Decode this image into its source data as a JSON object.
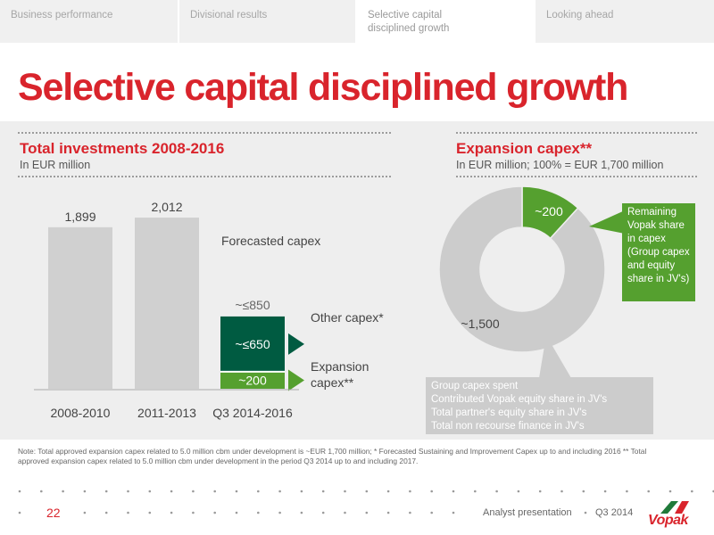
{
  "tabs": [
    {
      "label": "Business performance"
    },
    {
      "label": "Divisional results"
    },
    {
      "label": "Selective capital disciplined growth"
    },
    {
      "label": "Looking ahead"
    }
  ],
  "page_title": "Selective capital disciplined growth",
  "left": {
    "title": "Total investments 2008-2016",
    "subtitle": "In EUR million",
    "forecast_label": "Forecasted capex",
    "other_capex_label": "Other capex*",
    "expansion_capex_label": "Expansion capex**"
  },
  "right": {
    "title": "Expansion capex**",
    "subtitle": "In EUR million; 100% = EUR 1,700 million",
    "callout": "Remaining Vopak share in capex (Group capex and equity share in JV's)",
    "grey_box": {
      "lines": [
        "Group capex spent",
        "Contributed Vopak equity share in JV's",
        "Total partner's equity share in JV's",
        "Total non recourse finance in JV's"
      ]
    }
  },
  "chart_data": [
    {
      "type": "bar",
      "title": "Total investments 2008-2016",
      "ylabel": "In EUR million",
      "categories": [
        "2008-2010",
        "2011-2013",
        "Q3 2014-2016"
      ],
      "values": [
        1899,
        2012,
        850
      ],
      "value_labels": [
        "1,899",
        "2,012",
        "~≤850"
      ],
      "stacked_last": {
        "segments": [
          {
            "name": "Expansion capex**",
            "value": 200,
            "label": "~200",
            "color": "#55a02f"
          },
          {
            "name": "Other capex*",
            "value": 650,
            "label": "~≤650",
            "color": "#005b41"
          }
        ]
      },
      "bar_color": "#d0d0d0"
    },
    {
      "type": "pie",
      "title": "Expansion capex**",
      "slices": [
        {
          "label": "~200",
          "value": 200,
          "color": "#55a02f"
        },
        {
          "label": "~1,500",
          "value": 1500,
          "color": "#cccccc"
        }
      ]
    }
  ],
  "note": "Note: Total approved expansion capex related to 5.0 million cbm under development is ~EUR 1,700 million; * Forecasted Sustaining and Improvement Capex up to and including 2016 ** Total approved expansion capex related to 5.0 million cbm under development in the period Q3 2014 up to and including 2017.",
  "footer": {
    "page_number": "22",
    "presentation": "Analyst presentation",
    "date": "Q3 2014",
    "logo_text": "Vopak"
  },
  "colors": {
    "brand_red": "#d9242c",
    "green": "#55a02f",
    "dark_green": "#005b41",
    "grey": "#cccccc"
  }
}
